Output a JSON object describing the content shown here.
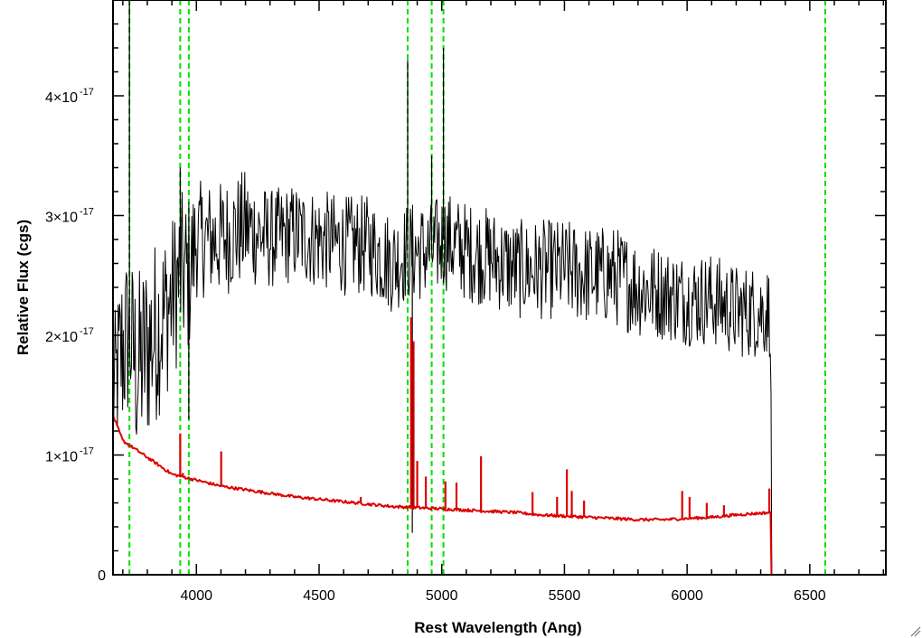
{
  "chart_data": {
    "type": "line",
    "title": "",
    "xlabel": "Rest Wavelength (Ang)",
    "ylabel": "Relative Flux (cgs)",
    "xlim": [
      3660,
      6810
    ],
    "ylim": [
      0,
      4.8e-17
    ],
    "x_ticks": [
      4000,
      4500,
      5000,
      5500,
      6000,
      6500
    ],
    "x_tick_labels": [
      "4000",
      "4500",
      "5000",
      "5500",
      "6000",
      "6500"
    ],
    "y_ticks": [
      0,
      1e-17,
      2e-17,
      3e-17,
      4e-17
    ],
    "y_tick_labels": [
      {
        "mantissa": "0",
        "exponent": ""
      },
      {
        "mantissa": "1×10",
        "exponent": "-17"
      },
      {
        "mantissa": "2×10",
        "exponent": "-17"
      },
      {
        "mantissa": "3×10",
        "exponent": "-17"
      },
      {
        "mantissa": "4×10",
        "exponent": "-17"
      }
    ],
    "grid": false,
    "reference_lines": {
      "style": "dashed",
      "color": "#00e000",
      "x": [
        3727,
        3934,
        3969,
        4861,
        4959,
        5007,
        6563
      ]
    },
    "series": [
      {
        "color": "#000000",
        "style": "noisy",
        "x": [
          3660,
          3700,
          3727,
          3760,
          3800,
          3850,
          3900,
          3934,
          3969,
          4000,
          4100,
          4200,
          4300,
          4400,
          4500,
          4600,
          4700,
          4800,
          4861,
          4900,
          4959,
          5007,
          5100,
          5200,
          5300,
          5400,
          5500,
          5600,
          5700,
          5800,
          5900,
          6000,
          6100,
          6200,
          6340,
          6345,
          6810
        ],
        "y": [
          1.5e-17,
          1.9e-17,
          2e-17,
          1.7e-17,
          1.9e-17,
          2.1e-17,
          2.3e-17,
          2.5e-17,
          2.5e-17,
          2.8e-17,
          2.8e-17,
          2.9e-17,
          2.8e-17,
          2.85e-17,
          2.8e-17,
          2.75e-17,
          2.75e-17,
          2.6e-17,
          2.7e-17,
          2.7e-17,
          2.7e-17,
          2.8e-17,
          2.7e-17,
          2.65e-17,
          2.55e-17,
          2.55e-17,
          2.55e-17,
          2.5e-17,
          2.5e-17,
          2.4e-17,
          2.35e-17,
          2.3e-17,
          2.3e-17,
          2.2e-17,
          2.2e-17,
          0,
          0
        ],
        "noise": [
          4e-18,
          6e-18,
          5e-18,
          6e-18,
          6e-18,
          5.5e-18,
          5e-18,
          5e-18,
          5e-18,
          3.5e-18,
          3.5e-18,
          3.5e-18,
          3e-18,
          3e-18,
          3e-18,
          3e-18,
          3e-18,
          3e-18,
          3e-18,
          3e-18,
          3e-18,
          3e-18,
          3e-18,
          3e-18,
          3e-18,
          3e-18,
          3e-18,
          3e-18,
          3e-18,
          3e-18,
          2.8e-18,
          2.8e-18,
          2.8e-18,
          2.8e-18,
          2.8e-18,
          0,
          0
        ],
        "spikes": [
          {
            "x": 3727,
            "y": 4.8e-17
          },
          {
            "x": 3934,
            "y": 3.4e-17
          },
          {
            "x": 3969,
            "y": 1.3e-17
          },
          {
            "x": 4861,
            "y": 4.3e-17
          },
          {
            "x": 4880,
            "y": 3.5e-18
          },
          {
            "x": 4959,
            "y": 3.5e-17
          },
          {
            "x": 5007,
            "y": 4.4e-17
          }
        ]
      },
      {
        "color": "#dd0000",
        "style": "smooth",
        "x": [
          3660,
          3700,
          3800,
          3900,
          4000,
          4100,
          4200,
          4300,
          4400,
          4500,
          4600,
          4700,
          4800,
          4900,
          5000,
          5100,
          5200,
          5300,
          5400,
          5500,
          5600,
          5700,
          5800,
          5900,
          6000,
          6100,
          6200,
          6340,
          6341,
          6810
        ],
        "y": [
          1.33e-17,
          1.12e-17,
          9.8e-18,
          8.4e-18,
          7.9e-18,
          7.4e-18,
          7.1e-18,
          6.8e-18,
          6.5e-18,
          6.3e-18,
          6.1e-18,
          5.9e-18,
          5.7e-18,
          5.6e-18,
          5.5e-18,
          5.4e-18,
          5.3e-18,
          5.2e-18,
          5e-18,
          4.9e-18,
          4.8e-18,
          4.7e-18,
          4.6e-18,
          4.6e-18,
          4.7e-18,
          4.8e-18,
          5e-18,
          5.2e-18,
          0,
          0
        ],
        "spikes": [
          {
            "x": 3934,
            "y": 1.18e-17
          },
          {
            "x": 3945,
            "y": 8.5e-18
          },
          {
            "x": 4101,
            "y": 1.03e-17
          },
          {
            "x": 4670,
            "y": 6.5e-18
          },
          {
            "x": 4875,
            "y": 2.15e-17
          },
          {
            "x": 4885,
            "y": 1.95e-17
          },
          {
            "x": 4900,
            "y": 9.5e-18
          },
          {
            "x": 4935,
            "y": 8.2e-18
          },
          {
            "x": 5015,
            "y": 7.8e-18
          },
          {
            "x": 5060,
            "y": 7.7e-18
          },
          {
            "x": 5160,
            "y": 9.9e-18
          },
          {
            "x": 5370,
            "y": 6.9e-18
          },
          {
            "x": 5470,
            "y": 6.5e-18
          },
          {
            "x": 5510,
            "y": 8.8e-18
          },
          {
            "x": 5530,
            "y": 7e-18
          },
          {
            "x": 5580,
            "y": 6.2e-18
          },
          {
            "x": 5980,
            "y": 7e-18
          },
          {
            "x": 6010,
            "y": 6.5e-18
          },
          {
            "x": 6080,
            "y": 6e-18
          },
          {
            "x": 6150,
            "y": 5.8e-18
          },
          {
            "x": 6335,
            "y": 7.2e-18
          }
        ]
      }
    ]
  }
}
